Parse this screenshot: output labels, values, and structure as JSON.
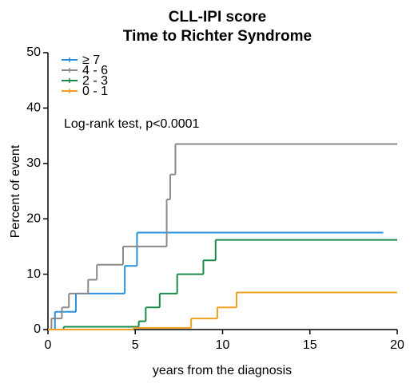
{
  "chart_data": {
    "type": "step",
    "title": "CLL-IPI score",
    "subtitle": "Time to Richter Syndrome",
    "x_label": "years from the diagnosis",
    "y_label": "Percent of event",
    "annotation": "Log-rank test, p<0.0001",
    "xlim": [
      0,
      20
    ],
    "xticks": [
      0,
      5,
      10,
      15,
      20
    ],
    "ylim": [
      0,
      50
    ],
    "yticks": [
      0,
      10,
      20,
      30,
      40,
      50
    ],
    "legend": "top-left",
    "series": [
      {
        "name": "≥ 7",
        "color": "#2a8fdc",
        "x": [
          0,
          0.4,
          1.6,
          4.4,
          5.1,
          19.2
        ],
        "values": [
          0,
          3.2,
          6.5,
          11.5,
          17.5,
          17.5
        ]
      },
      {
        "name": "4 - 6",
        "color": "#8a8a8a",
        "x": [
          0,
          0.2,
          0.8,
          1.2,
          2.3,
          2.8,
          4.3,
          6.8,
          7.0,
          7.3,
          20
        ],
        "values": [
          0,
          2,
          4,
          6.5,
          9,
          11.7,
          15,
          23.5,
          28,
          33.5,
          33.5
        ]
      },
      {
        "name": "2 - 3",
        "color": "#1a8a4a",
        "x": [
          0,
          0.9,
          5.2,
          5.6,
          6.4,
          7.4,
          8.9,
          9.6,
          20
        ],
        "values": [
          0,
          0.5,
          1.5,
          4,
          6.5,
          10,
          12.5,
          16.2,
          16.2
        ]
      },
      {
        "name": "0 - 1",
        "color": "#f0a020",
        "x": [
          0,
          4.9,
          8.2,
          9.7,
          10.8,
          20
        ],
        "values": [
          0,
          0.3,
          2,
          4,
          6.7,
          6.7
        ]
      }
    ]
  }
}
